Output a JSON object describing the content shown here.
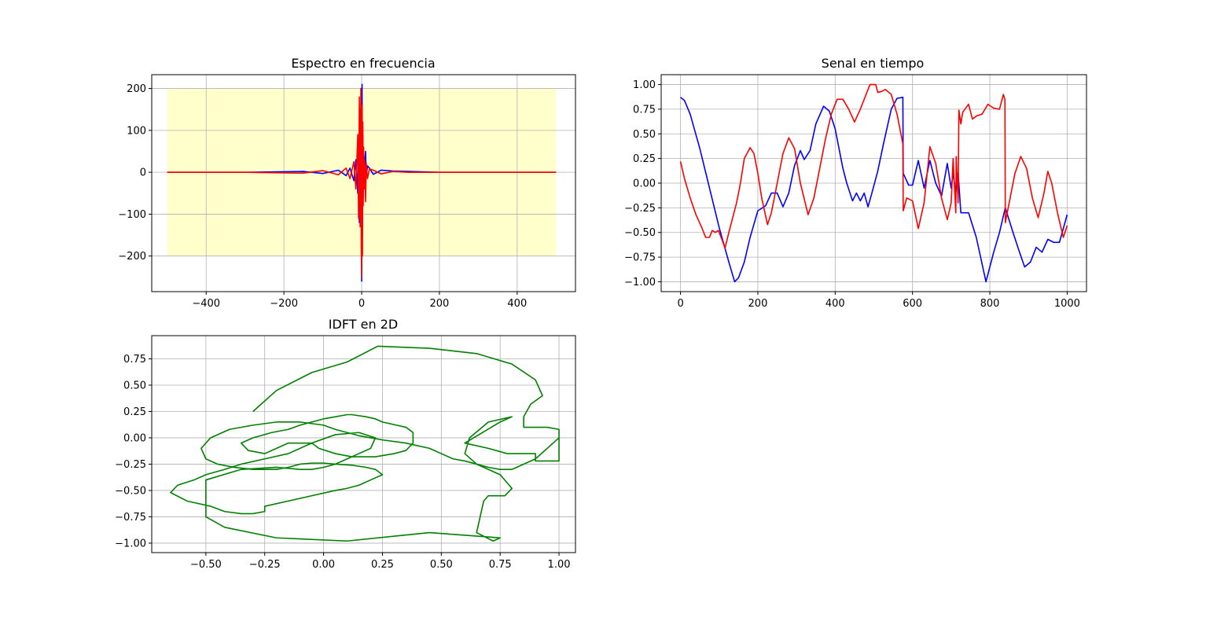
{
  "chart_data": [
    {
      "id": "spectrum",
      "type": "line",
      "title": "Espectro en frecuencia",
      "xlabel": "",
      "ylabel": "",
      "xlim": [
        -540,
        550
      ],
      "ylim": [
        -285,
        233
      ],
      "xticks": [
        -400,
        -200,
        0,
        200,
        400
      ],
      "xtick_labels": [
        "−400",
        "−200",
        "0",
        "200",
        "400"
      ],
      "yticks": [
        -200,
        -100,
        0,
        100,
        200
      ],
      "ytick_labels": [
        "−200",
        "−100",
        "0",
        "100",
        "200"
      ],
      "grid": true,
      "legend": "none",
      "background_band": {
        "x": [
          -500,
          500
        ],
        "y": [
          -200,
          200
        ],
        "color": "#ffffcc"
      },
      "series": [
        {
          "color": "#0000ff",
          "x": [
            -500,
            -300,
            -150,
            -100,
            -60,
            -40,
            -30,
            -20,
            -15,
            -10,
            -8,
            -6,
            -4,
            -2,
            -1,
            0,
            1,
            2,
            3,
            4,
            5,
            6,
            8,
            10,
            12,
            15,
            20,
            30,
            50,
            80,
            120,
            200,
            350,
            500
          ],
          "y": [
            0,
            0,
            2,
            -3,
            5,
            -8,
            10,
            -20,
            30,
            -50,
            80,
            -120,
            150,
            -100,
            200,
            -260,
            210,
            -150,
            90,
            -60,
            40,
            -30,
            25,
            50,
            -10,
            15,
            10,
            -5,
            5,
            3,
            2,
            0,
            0,
            0
          ]
        },
        {
          "color": "#ff0000",
          "x": [
            -500,
            -300,
            -150,
            -100,
            -60,
            -40,
            -30,
            -20,
            -15,
            -10,
            -8,
            -6,
            -4,
            -2,
            -1,
            0,
            1,
            2,
            3,
            4,
            5,
            6,
            8,
            10,
            12,
            15,
            20,
            30,
            50,
            80,
            120,
            200,
            350,
            500
          ],
          "y": [
            0,
            0,
            -2,
            4,
            -6,
            10,
            -15,
            25,
            -40,
            90,
            -110,
            180,
            -130,
            200,
            -180,
            -250,
            160,
            -200,
            120,
            -80,
            60,
            -40,
            30,
            -70,
            20,
            -15,
            8,
            5,
            -4,
            2,
            0,
            0,
            0,
            0
          ]
        }
      ]
    },
    {
      "id": "time-signal",
      "type": "line",
      "title": "Senal en tiempo",
      "xlabel": "",
      "ylabel": "",
      "xlim": [
        -50,
        1050
      ],
      "ylim": [
        -1.1,
        1.1
      ],
      "xticks": [
        0,
        200,
        400,
        600,
        800,
        1000
      ],
      "xtick_labels": [
        "0",
        "200",
        "400",
        "600",
        "800",
        "1000"
      ],
      "yticks": [
        -1.0,
        -0.75,
        -0.5,
        -0.25,
        0.0,
        0.25,
        0.5,
        0.75,
        1.0
      ],
      "ytick_labels": [
        "−1.00",
        "−0.75",
        "−0.50",
        "−0.25",
        "0.00",
        "0.25",
        "0.50",
        "0.75",
        "1.00"
      ],
      "grid": true,
      "legend": "none",
      "series": [
        {
          "color": "#0000ff",
          "x": [
            0,
            10,
            25,
            50,
            75,
            100,
            125,
            140,
            150,
            165,
            180,
            200,
            220,
            235,
            250,
            265,
            280,
            295,
            310,
            320,
            335,
            350,
            370,
            385,
            400,
            420,
            430,
            445,
            455,
            465,
            475,
            485,
            495,
            510,
            525,
            545,
            560,
            575,
            576,
            590,
            600,
            615,
            630,
            645,
            660,
            675,
            690,
            700,
            705,
            712,
            718,
            725,
            745,
            765,
            790,
            810,
            825,
            840,
            860,
            875,
            890,
            905,
            920,
            935,
            950,
            965,
            980,
            1000
          ],
          "y": [
            0.87,
            0.84,
            0.7,
            0.35,
            -0.05,
            -0.45,
            -0.8,
            -1.0,
            -0.96,
            -0.8,
            -0.55,
            -0.28,
            -0.23,
            -0.1,
            -0.1,
            -0.24,
            -0.1,
            0.18,
            0.33,
            0.24,
            0.33,
            0.6,
            0.78,
            0.73,
            0.55,
            0.15,
            0.0,
            -0.18,
            -0.1,
            -0.18,
            -0.1,
            -0.24,
            -0.1,
            0.12,
            0.4,
            0.75,
            0.86,
            0.87,
            0.1,
            -0.02,
            -0.02,
            0.23,
            -0.05,
            0.23,
            0.0,
            -0.13,
            0.2,
            -0.05,
            0.1,
            -0.1,
            0.1,
            -0.3,
            -0.3,
            -0.55,
            -1.0,
            -0.7,
            -0.5,
            -0.25,
            -0.5,
            -0.68,
            -0.85,
            -0.8,
            -0.65,
            -0.7,
            -0.57,
            -0.6,
            -0.6,
            -0.32
          ]
        },
        {
          "color": "#ff0000",
          "x": [
            0,
            10,
            25,
            40,
            55,
            65,
            75,
            82,
            90,
            98,
            108,
            115,
            125,
            135,
            145,
            155,
            165,
            180,
            190,
            200,
            210,
            225,
            235,
            250,
            265,
            280,
            295,
            310,
            330,
            345,
            360,
            375,
            390,
            405,
            420,
            435,
            450,
            465,
            480,
            490,
            500,
            505,
            510,
            520,
            530,
            545,
            560,
            575,
            576,
            585,
            600,
            615,
            630,
            645,
            660,
            675,
            690,
            700,
            705,
            712,
            713,
            718,
            720,
            725,
            730,
            745,
            755,
            765,
            780,
            795,
            810,
            825,
            835,
            839,
            840,
            850,
            865,
            880,
            895,
            910,
            925,
            940,
            950,
            960,
            975,
            990,
            1000
          ],
          "y": [
            0.22,
            0.05,
            -0.15,
            -0.32,
            -0.45,
            -0.55,
            -0.55,
            -0.48,
            -0.5,
            -0.48,
            -0.58,
            -0.66,
            -0.5,
            -0.35,
            -0.2,
            0.0,
            0.25,
            0.36,
            0.3,
            0.1,
            -0.15,
            -0.42,
            -0.3,
            0.0,
            0.3,
            0.46,
            0.35,
            0.0,
            -0.32,
            -0.15,
            0.15,
            0.45,
            0.7,
            0.85,
            0.85,
            0.75,
            0.62,
            0.75,
            0.9,
            1.0,
            1.0,
            1.0,
            0.92,
            0.93,
            0.95,
            0.9,
            0.7,
            0.4,
            -0.28,
            -0.15,
            -0.18,
            -0.46,
            -0.2,
            0.37,
            0.2,
            -0.15,
            -0.37,
            -0.2,
            0.25,
            -0.3,
            0.27,
            -0.2,
            0.74,
            0.6,
            0.72,
            0.8,
            0.65,
            0.68,
            0.7,
            0.8,
            0.76,
            0.75,
            0.9,
            0.85,
            -0.4,
            -0.2,
            0.1,
            0.27,
            0.15,
            -0.15,
            -0.35,
            -0.1,
            0.12,
            0.0,
            -0.3,
            -0.55,
            -0.43
          ]
        }
      ]
    },
    {
      "id": "idft-2d",
      "type": "line",
      "title": "IDFT en 2D",
      "xlabel": "",
      "ylabel": "",
      "xlim": [
        -0.73,
        1.07
      ],
      "ylim": [
        -1.09,
        0.97
      ],
      "xticks": [
        -0.5,
        -0.25,
        0.0,
        0.25,
        0.5,
        0.75,
        1.0
      ],
      "xtick_labels": [
        "−0.50",
        "−0.25",
        "0.00",
        "0.25",
        "0.50",
        "0.75",
        "1.00"
      ],
      "yticks": [
        -1.0,
        -0.75,
        -0.5,
        -0.25,
        0.0,
        0.25,
        0.5,
        0.75
      ],
      "ytick_labels": [
        "−1.00",
        "−0.75",
        "−0.50",
        "−0.25",
        "0.00",
        "0.25",
        "0.50",
        "0.75"
      ],
      "grid": true,
      "legend": "none",
      "series": [
        {
          "color": "#008000",
          "x": [
            -0.3,
            -0.2,
            -0.05,
            0.1,
            0.23,
            0.45,
            0.65,
            0.8,
            0.9,
            0.93,
            0.88,
            0.85,
            0.85,
            0.95,
            1.0,
            1.0,
            0.9,
            0.9,
            0.78,
            0.7,
            0.6,
            0.75,
            0.8,
            0.7,
            0.62,
            0.6,
            0.65,
            0.75,
            0.8,
            0.77,
            0.7,
            0.68,
            0.65,
            0.72,
            0.75,
            0.45,
            0.1,
            -0.2,
            -0.42,
            -0.5,
            -0.5,
            -0.5,
            -0.35,
            -0.2,
            -0.1,
            -0.05,
            0.0,
            0.05,
            0.1,
            0.15,
            0.2,
            0.22,
            0.15,
            0.05,
            -0.05,
            -0.15,
            -0.2,
            -0.25,
            -0.32,
            -0.35,
            -0.3,
            -0.22,
            -0.15,
            -0.1,
            -0.05,
            0.0,
            0.05,
            0.1,
            0.12,
            0.18,
            0.22,
            0.25,
            0.35,
            0.38,
            0.38,
            0.35,
            0.3,
            0.22,
            0.12,
            0.05,
            -0.02,
            -0.05,
            -0.15,
            -0.25,
            -0.35,
            -0.42,
            -0.5,
            -0.55,
            -0.62,
            -0.65,
            -0.58,
            -0.48,
            -0.42,
            -0.35,
            -0.3,
            -0.25,
            -0.25,
            -0.15,
            -0.05,
            0.05,
            0.1,
            0.15,
            0.2,
            0.25,
            0.22,
            0.18,
            0.12,
            0.05,
            0.0,
            -0.05,
            -0.1,
            -0.15,
            -0.2,
            -0.3,
            -0.38,
            -0.45,
            -0.5,
            -0.52,
            -0.48,
            -0.4,
            -0.3,
            -0.2,
            -0.1,
            0.0,
            0.05,
            0.1,
            0.15,
            0.2,
            0.25,
            0.35,
            0.45,
            0.5,
            0.55,
            0.6,
            0.65,
            0.7,
            0.75,
            0.8,
            0.82,
            0.85,
            0.9,
            1.0
          ],
          "y": [
            0.25,
            0.45,
            0.62,
            0.72,
            0.87,
            0.85,
            0.8,
            0.7,
            0.55,
            0.4,
            0.32,
            0.2,
            0.1,
            0.1,
            0.08,
            -0.22,
            -0.22,
            -0.15,
            -0.15,
            -0.1,
            -0.05,
            0.15,
            0.2,
            0.15,
            0.0,
            -0.15,
            -0.25,
            -0.35,
            -0.48,
            -0.55,
            -0.55,
            -0.6,
            -0.9,
            -0.98,
            -0.95,
            -0.9,
            -0.98,
            -0.95,
            -0.85,
            -0.75,
            -0.6,
            -0.4,
            -0.3,
            -0.28,
            -0.3,
            -0.3,
            -0.28,
            -0.25,
            -0.2,
            -0.15,
            -0.1,
            0.0,
            0.05,
            0.03,
            -0.05,
            -0.05,
            -0.1,
            -0.15,
            -0.12,
            -0.05,
            0.0,
            0.05,
            0.08,
            0.12,
            0.15,
            0.18,
            0.2,
            0.22,
            0.22,
            0.2,
            0.18,
            0.15,
            0.1,
            0.05,
            -0.05,
            -0.12,
            -0.15,
            -0.18,
            -0.18,
            -0.15,
            -0.1,
            -0.05,
            -0.15,
            -0.2,
            -0.25,
            -0.3,
            -0.35,
            -0.4,
            -0.45,
            -0.52,
            -0.6,
            -0.65,
            -0.7,
            -0.72,
            -0.72,
            -0.7,
            -0.65,
            -0.6,
            -0.55,
            -0.5,
            -0.48,
            -0.45,
            -0.4,
            -0.35,
            -0.3,
            -0.28,
            -0.26,
            -0.25,
            -0.24,
            -0.24,
            -0.25,
            -0.28,
            -0.3,
            -0.3,
            -0.28,
            -0.25,
            -0.2,
            -0.1,
            0.0,
            0.08,
            0.12,
            0.15,
            0.15,
            0.12,
            0.08,
            0.05,
            0.02,
            0.0,
            -0.02,
            -0.05,
            -0.1,
            -0.15,
            -0.2,
            -0.22,
            -0.25,
            -0.28,
            -0.3,
            -0.3,
            -0.28,
            -0.25,
            -0.2,
            0.0
          ]
        }
      ]
    }
  ]
}
